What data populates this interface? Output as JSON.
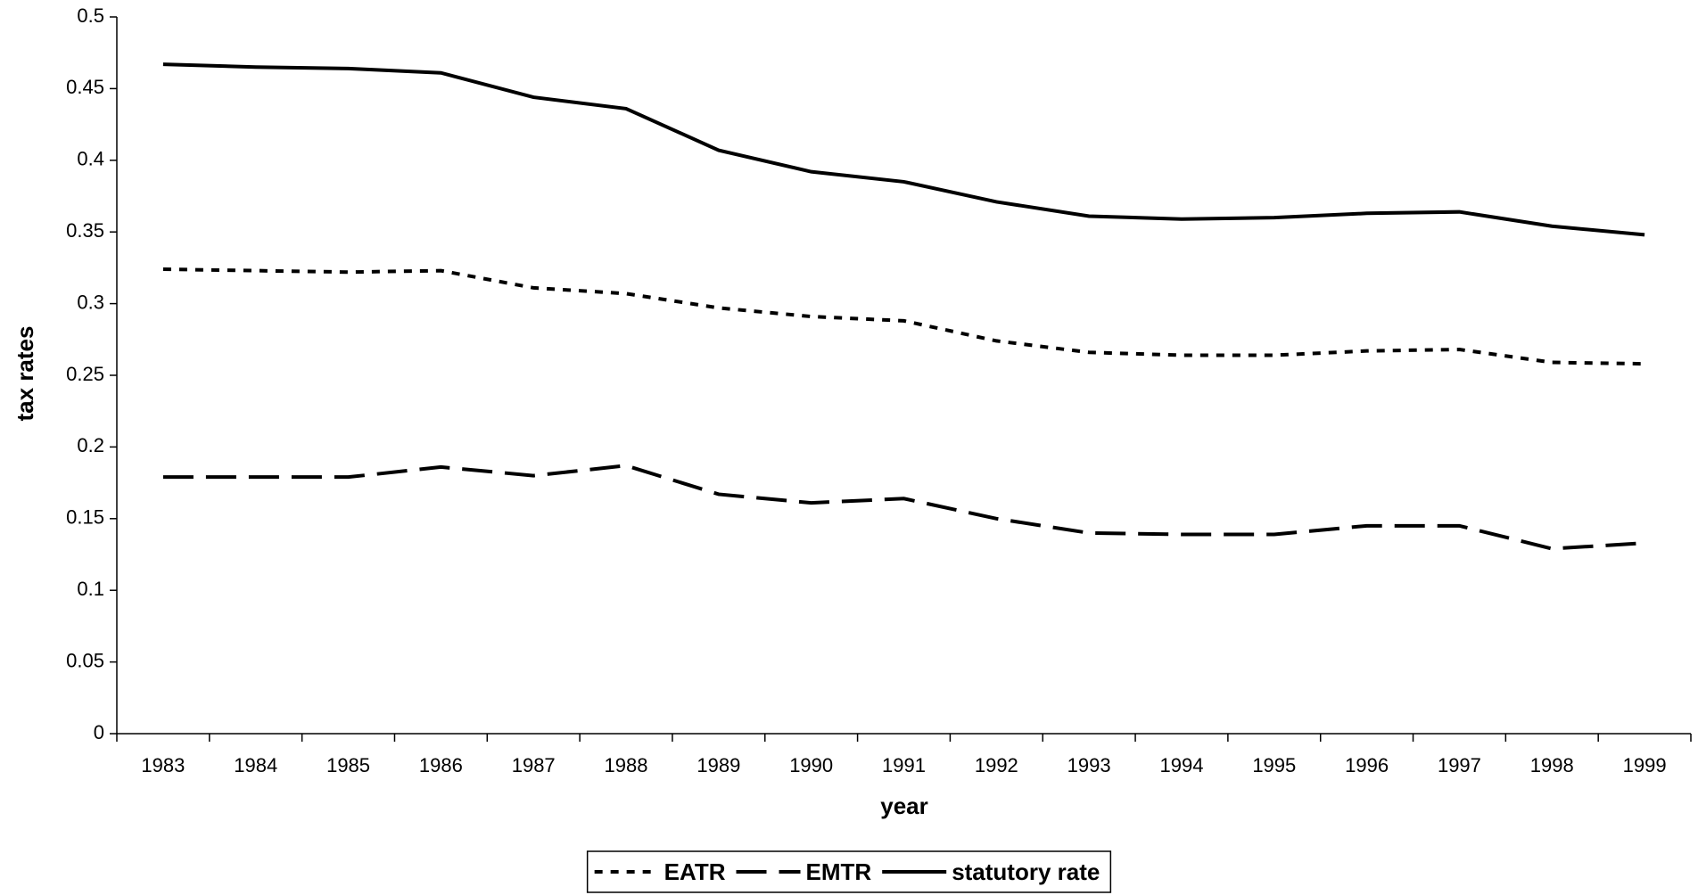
{
  "chart_data": {
    "type": "line",
    "x_label": "year",
    "y_label": "tax rates",
    "categories": [
      "1983",
      "1984",
      "1985",
      "1986",
      "1987",
      "1988",
      "1989",
      "1990",
      "1991",
      "1992",
      "1993",
      "1994",
      "1995",
      "1996",
      "1997",
      "1998",
      "1999"
    ],
    "series": [
      {
        "name": "EATR",
        "color": "#000000",
        "dash": "9,9",
        "values": [
          0.324,
          0.323,
          0.322,
          0.323,
          0.311,
          0.307,
          0.297,
          0.291,
          0.288,
          0.274,
          0.266,
          0.264,
          0.264,
          0.267,
          0.268,
          0.259,
          0.258
        ]
      },
      {
        "name": "EMTR",
        "color": "#000000",
        "dash": "34,14",
        "values": [
          0.179,
          0.179,
          0.179,
          0.186,
          0.18,
          0.187,
          0.167,
          0.161,
          0.164,
          0.15,
          0.14,
          0.139,
          0.139,
          0.145,
          0.145,
          0.129,
          0.133
        ]
      },
      {
        "name": "statutory rate",
        "color": "#000000",
        "dash": "none",
        "values": [
          0.467,
          0.465,
          0.464,
          0.461,
          0.444,
          0.436,
          0.407,
          0.392,
          0.385,
          0.371,
          0.361,
          0.359,
          0.36,
          0.363,
          0.364,
          0.354,
          0.348
        ]
      }
    ],
    "ylim": [
      0,
      0.5
    ],
    "yticks": [
      0,
      0.05,
      0.1,
      0.15,
      0.2,
      0.25,
      0.3,
      0.35,
      0.4,
      0.45,
      0.5
    ],
    "grid": false,
    "legend": "bottom"
  }
}
